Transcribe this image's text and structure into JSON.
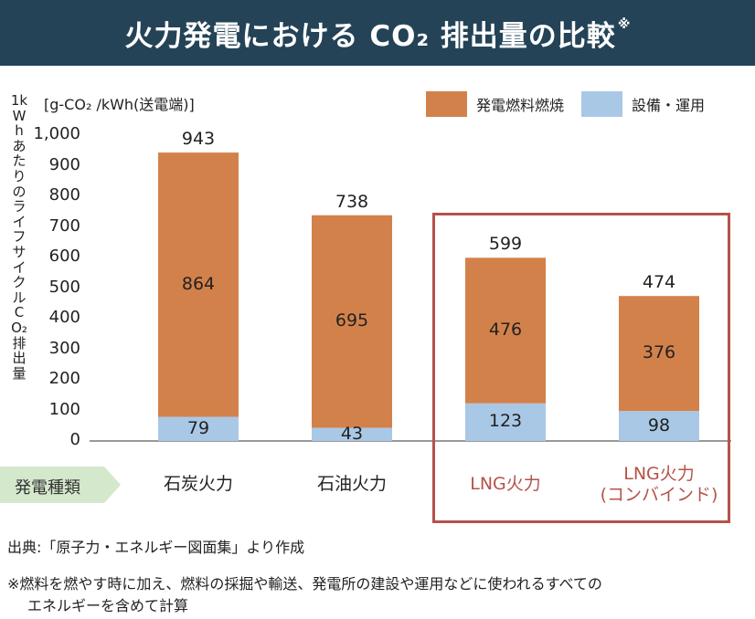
{
  "title": {
    "main": "火力発電における CO₂ 排出量の比較",
    "mark": "※"
  },
  "unit_label": "[g-CO₂ /kWh(送電端)]",
  "y_axis_label": "1kWhあたりのライフサイクルCO₂排出量",
  "legend": [
    {
      "label": "発電燃料燃焼",
      "color": "#d3814b"
    },
    {
      "label": "設備・運用",
      "color": "#a9c8e6"
    }
  ],
  "category_header": "発電種類",
  "highlight_color": "#b5524a",
  "chart_data": {
    "type": "bar",
    "stacked": true,
    "categories": [
      "石炭火力",
      "石油火力",
      "LNG火力",
      "LNG火力\n(コンバインド)"
    ],
    "series": [
      {
        "name": "設備・運用",
        "values": [
          79,
          43,
          123,
          98
        ],
        "color": "#a9c8e6"
      },
      {
        "name": "発電燃料燃焼",
        "values": [
          864,
          695,
          476,
          376
        ],
        "color": "#d3814b"
      }
    ],
    "totals": [
      943,
      738,
      599,
      474
    ],
    "ylim": [
      0,
      1000
    ],
    "yticks": [
      "0",
      "100",
      "200",
      "300",
      "400",
      "500",
      "600",
      "700",
      "800",
      "900",
      "1,000"
    ],
    "highlighted_categories": [
      2,
      3
    ]
  },
  "source": "出典:「原子力・エネルギー図面集」より作成",
  "note_line1": "※燃料を燃やす時に加え、燃料の採掘や輸送、発電所の建設や運用などに使われるすべての",
  "note_line2": "エネルギーを含めて計算"
}
